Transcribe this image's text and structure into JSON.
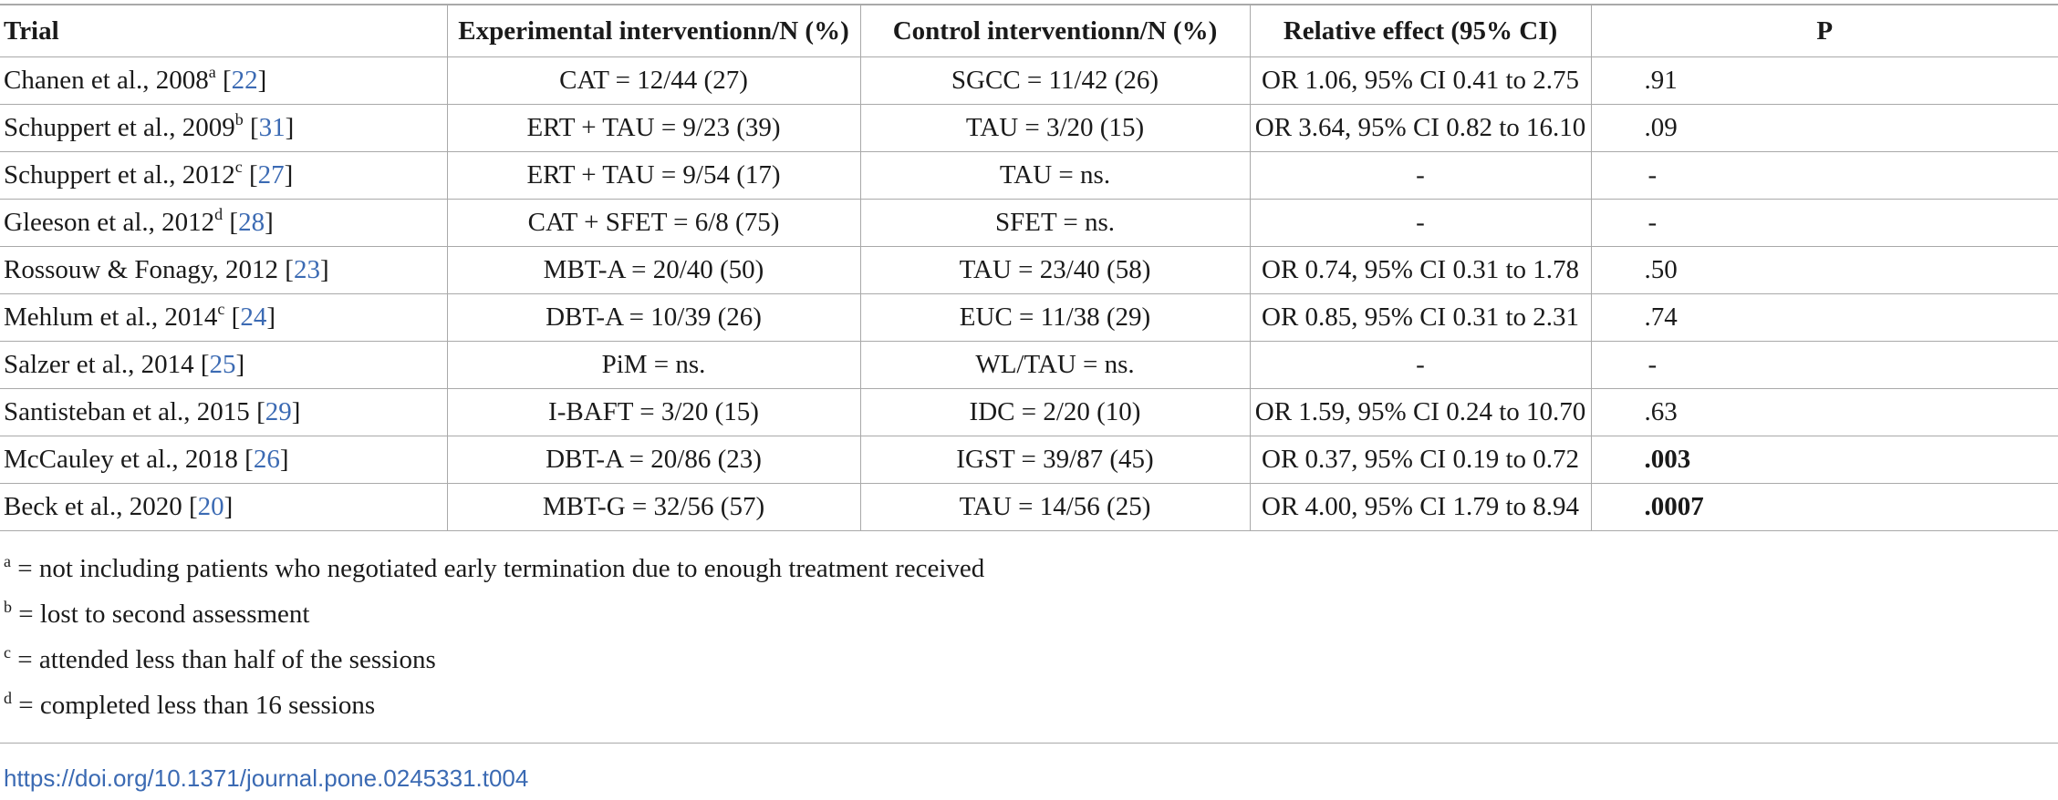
{
  "table": {
    "headers": {
      "trial": "Trial",
      "experimental": "Experimental interventionn/N (%)",
      "control": "Control interventionn/N (%)",
      "effect": "Relative effect (95% CI)",
      "p": "P"
    },
    "rows": [
      {
        "author": "Chanen et al., 2008",
        "sup": "a",
        "ref_open": " [",
        "ref": "22",
        "ref_close": "]",
        "experimental": "CAT = 12/44 (27)",
        "control": "SGCC = 11/42 (26)",
        "effect": "OR 1.06, 95% CI 0.41 to 2.75",
        "p": ".91"
      },
      {
        "author": "Schuppert et al., 2009",
        "sup": "b",
        "ref_open": " [",
        "ref": "31",
        "ref_close": "]",
        "experimental": "ERT + TAU = 9/23 (39)",
        "control": "TAU = 3/20 (15)",
        "effect": "OR 3.64, 95% CI 0.82 to 16.10",
        "p": ".09"
      },
      {
        "author": "Schuppert et al., 2012",
        "sup": "c",
        "ref_open": " [",
        "ref": "27",
        "ref_close": "]",
        "experimental": "ERT + TAU = 9/54 (17)",
        "control": "TAU = ns.",
        "effect": "-",
        "p": "-"
      },
      {
        "author": "Gleeson et al., 2012",
        "sup": "d",
        "ref_open": " [",
        "ref": "28",
        "ref_close": "]",
        "experimental": "CAT + SFET = 6/8 (75)",
        "control": "SFET = ns.",
        "effect": "-",
        "p": "-"
      },
      {
        "author": "Rossouw & Fonagy, 2012",
        "sup": "",
        "ref_open": " [",
        "ref": "23",
        "ref_close": "]",
        "experimental": "MBT-A = 20/40 (50)",
        "control": "TAU = 23/40 (58)",
        "effect": "OR 0.74, 95% CI 0.31 to 1.78",
        "p": ".50"
      },
      {
        "author": "Mehlum et al., 2014",
        "sup": "c",
        "ref_open": " [",
        "ref": "24",
        "ref_close": "]",
        "experimental": "DBT-A = 10/39 (26)",
        "control": "EUC = 11/38 (29)",
        "effect": "OR 0.85, 95% CI 0.31 to 2.31",
        "p": ".74"
      },
      {
        "author": "Salzer et al., 2014",
        "sup": "",
        "ref_open": " [",
        "ref": "25",
        "ref_close": "]",
        "experimental": "PiM = ns.",
        "control": "WL/TAU = ns.",
        "effect": "-",
        "p": "-"
      },
      {
        "author": "Santisteban et al., 2015",
        "sup": "",
        "ref_open": " [",
        "ref": "29",
        "ref_close": "]",
        "experimental": "I-BAFT = 3/20 (15)",
        "control": "IDC = 2/20 (10)",
        "effect": "OR 1.59, 95% CI 0.24 to 10.70",
        "p": ".63"
      },
      {
        "author": "McCauley et al., 2018",
        "sup": "",
        "ref_open": " [",
        "ref": "26",
        "ref_close": "]",
        "experimental": "DBT-A = 20/86 (23)",
        "control": "IGST = 39/87 (45)",
        "effect": "OR 0.37, 95% CI 0.19 to 0.72",
        "p": ".003"
      },
      {
        "author": "Beck et al., 2020",
        "sup": "",
        "ref_open": " [",
        "ref": "20",
        "ref_close": "]",
        "experimental": "MBT-G = 32/56 (57)",
        "control": "TAU = 14/56 (25)",
        "effect": "OR 4.00, 95% CI 1.79 to 8.94",
        "p": ".0007"
      }
    ]
  },
  "footnotes": [
    {
      "mark": "a",
      "text": " = not including patients who negotiated early termination due to enough treatment received"
    },
    {
      "mark": "b",
      "text": " = lost to second assessment"
    },
    {
      "mark": "c",
      "text": " = attended less than half of the sessions"
    },
    {
      "mark": "d",
      "text": " = completed less than 16 sessions"
    }
  ],
  "doi": "https://doi.org/10.1371/journal.pone.0245331.t004",
  "colors": {
    "link": "#3b6ab3",
    "rule": "#a9a9a9",
    "text": "#1a1a1a"
  }
}
